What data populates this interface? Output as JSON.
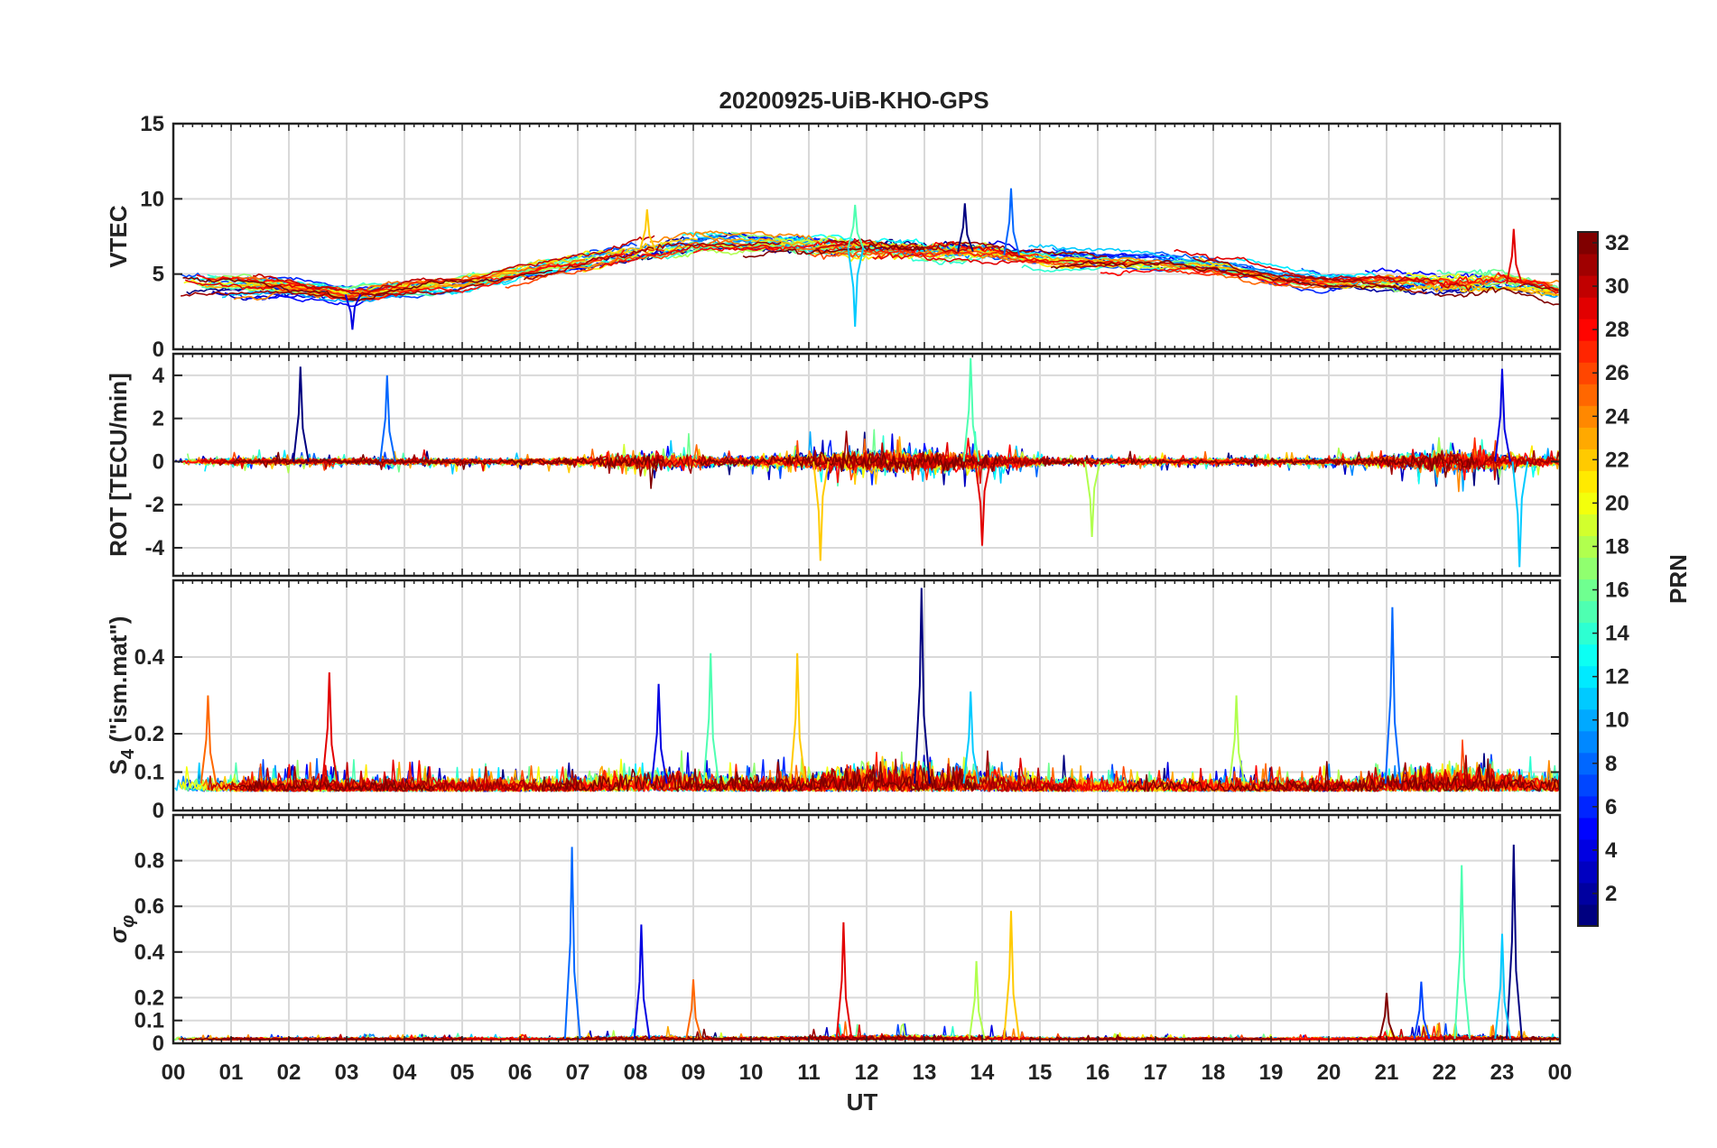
{
  "chart_data": {
    "type": "line",
    "title": "20200925-UiB-KHO-GPS",
    "xlabel": "UT",
    "x_range_hours": [
      0,
      24
    ],
    "x_tick_labels": [
      "00",
      "01",
      "02",
      "03",
      "04",
      "05",
      "06",
      "07",
      "08",
      "09",
      "10",
      "11",
      "12",
      "13",
      "14",
      "15",
      "16",
      "17",
      "18",
      "19",
      "20",
      "21",
      "22",
      "23",
      "00"
    ],
    "series_note": "Multiple satellite series colored by PRN (1-32, jet colormap)",
    "colorbar": {
      "label": "PRN",
      "range": [
        1,
        32
      ],
      "tick_labels": [
        "2",
        "4",
        "6",
        "8",
        "10",
        "12",
        "14",
        "16",
        "18",
        "20",
        "22",
        "24",
        "26",
        "28",
        "30",
        "32"
      ]
    },
    "panels": [
      {
        "id": "vtec",
        "ylabel": "VTEC",
        "ylim": [
          0,
          15
        ],
        "y_tick_labels": [
          "0",
          "5",
          "10",
          "15"
        ],
        "baseline_profile": [
          {
            "h": 0,
            "v": 4.2
          },
          {
            "h": 2,
            "v": 4.1
          },
          {
            "h": 3,
            "v": 3.6
          },
          {
            "h": 4,
            "v": 4.0
          },
          {
            "h": 5,
            "v": 4.3
          },
          {
            "h": 6,
            "v": 5.0
          },
          {
            "h": 7,
            "v": 5.8
          },
          {
            "h": 8,
            "v": 6.5
          },
          {
            "h": 9,
            "v": 7.1
          },
          {
            "h": 10,
            "v": 7.0
          },
          {
            "h": 11,
            "v": 6.9
          },
          {
            "h": 12,
            "v": 6.7
          },
          {
            "h": 13,
            "v": 6.5
          },
          {
            "h": 14,
            "v": 6.5
          },
          {
            "h": 15,
            "v": 6.0
          },
          {
            "h": 16,
            "v": 5.8
          },
          {
            "h": 17,
            "v": 5.8
          },
          {
            "h": 18,
            "v": 5.5
          },
          {
            "h": 19,
            "v": 4.8
          },
          {
            "h": 20,
            "v": 4.4
          },
          {
            "h": 21,
            "v": 4.5
          },
          {
            "h": 22,
            "v": 4.3
          },
          {
            "h": 23,
            "v": 4.5
          },
          {
            "h": 24,
            "v": 3.8
          }
        ],
        "peaks": [
          {
            "h": 13.7,
            "v": 9.7
          },
          {
            "h": 14.5,
            "v": 10.7
          },
          {
            "h": 11.8,
            "v": 9.6
          },
          {
            "h": 8.2,
            "v": 9.3
          },
          {
            "h": 23.2,
            "v": 8.0
          },
          {
            "h": 3.1,
            "v": 1.3
          },
          {
            "h": 11.8,
            "v": 1.5
          }
        ]
      },
      {
        "id": "rot",
        "ylabel": "ROT [TECU/min]",
        "ylim": [
          -5.3,
          5.0
        ],
        "y_tick_labels": [
          "-4",
          "-2",
          "0",
          "2",
          "4"
        ],
        "peaks": [
          {
            "h": 2.2,
            "v": 4.4
          },
          {
            "h": 3.7,
            "v": 4.0
          },
          {
            "h": 13.8,
            "v": 4.8
          },
          {
            "h": 11.2,
            "v": -4.6
          },
          {
            "h": 14.0,
            "v": -3.9
          },
          {
            "h": 23.0,
            "v": 4.3
          },
          {
            "h": 23.3,
            "v": -4.9
          },
          {
            "h": 15.9,
            "v": -3.5
          }
        ]
      },
      {
        "id": "s4",
        "ylabel": "S4 (\"ism.mat\")",
        "ylim": [
          0,
          0.6
        ],
        "y_tick_labels": [
          "0",
          "0.1",
          "0.2",
          "0.4"
        ],
        "peaks": [
          {
            "h": 12.95,
            "v": 0.58
          },
          {
            "h": 21.1,
            "v": 0.53
          },
          {
            "h": 9.3,
            "v": 0.41
          },
          {
            "h": 10.8,
            "v": 0.41
          },
          {
            "h": 2.7,
            "v": 0.36
          },
          {
            "h": 8.4,
            "v": 0.33
          },
          {
            "h": 13.8,
            "v": 0.31
          },
          {
            "h": 18.4,
            "v": 0.3
          },
          {
            "h": 0.6,
            "v": 0.3
          }
        ]
      },
      {
        "id": "sigma_phi",
        "ylabel": "σφ",
        "ylim": [
          0,
          1.0
        ],
        "y_tick_labels": [
          "0",
          "0.1",
          "0.2",
          "0.4",
          "0.6",
          "0.8"
        ],
        "peaks": [
          {
            "h": 23.2,
            "v": 0.87
          },
          {
            "h": 6.9,
            "v": 0.86
          },
          {
            "h": 22.3,
            "v": 0.78
          },
          {
            "h": 14.5,
            "v": 0.58
          },
          {
            "h": 11.6,
            "v": 0.53
          },
          {
            "h": 8.1,
            "v": 0.52
          },
          {
            "h": 23.0,
            "v": 0.48
          },
          {
            "h": 13.9,
            "v": 0.36
          },
          {
            "h": 9.0,
            "v": 0.28
          },
          {
            "h": 21.0,
            "v": 0.22
          },
          {
            "h": 21.6,
            "v": 0.27
          }
        ]
      }
    ]
  }
}
